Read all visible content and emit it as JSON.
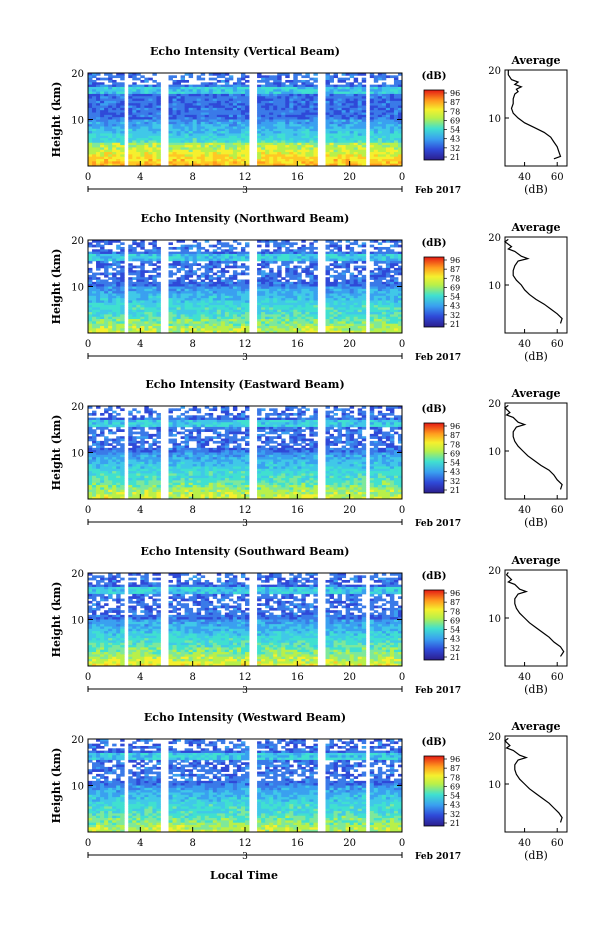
{
  "figure": {
    "x_axis_title": "Local Time",
    "date_label": "Feb 2017",
    "date_day": "3",
    "colorbar_unit": "(dB)",
    "colorbar_ticks": [
      "96",
      "87",
      "78",
      "69",
      "54",
      "43",
      "32",
      "21"
    ],
    "profile_title": "Average",
    "profile_xlabel": "(dB)",
    "height_label": "Height (km)"
  },
  "chart_data": [
    {
      "type": "heatmap",
      "title": "Echo Intensity (Vertical Beam)",
      "xlabel": "",
      "ylabel": "Height (km)",
      "x_ticks": [
        "0",
        "4",
        "8",
        "12",
        "16",
        "20",
        "0"
      ],
      "y_ticks": [
        "20",
        "10"
      ],
      "xlim": [
        0,
        24
      ],
      "ylim": [
        0,
        20
      ],
      "unit": "dB",
      "colorbar": [
        "96",
        "87",
        "78",
        "69",
        "54",
        "43",
        "32",
        "21"
      ],
      "data_gaps_hours": [
        2.9,
        5.9,
        12.6,
        17.8,
        21.4
      ],
      "profile": {
        "title": "Average",
        "xlabel": "(dB)",
        "x_ticks": [
          "40",
          "60"
        ],
        "y_ticks": [
          "20",
          "10"
        ],
        "points": [
          [
            30,
            20
          ],
          [
            30,
            19
          ],
          [
            32,
            18
          ],
          [
            36,
            17.5
          ],
          [
            34,
            17
          ],
          [
            38,
            16.5
          ],
          [
            35,
            16
          ],
          [
            36,
            15.5
          ],
          [
            34,
            15
          ],
          [
            33,
            14
          ],
          [
            33,
            13
          ],
          [
            32,
            12
          ],
          [
            33,
            11
          ],
          [
            36,
            10
          ],
          [
            40,
            9
          ],
          [
            46,
            8
          ],
          [
            52,
            7
          ],
          [
            56,
            6
          ],
          [
            58,
            5
          ],
          [
            60,
            4
          ],
          [
            61,
            3
          ],
          [
            62,
            2
          ],
          [
            58,
            1.5
          ]
        ]
      }
    },
    {
      "type": "heatmap",
      "title": "Echo Intensity (Northward Beam)",
      "xlabel": "",
      "ylabel": "Height (km)",
      "x_ticks": [
        "0",
        "4",
        "8",
        "12",
        "16",
        "20",
        "0"
      ],
      "y_ticks": [
        "20",
        "10"
      ],
      "xlim": [
        0,
        24
      ],
      "ylim": [
        0,
        20
      ],
      "unit": "dB",
      "colorbar": [
        "96",
        "87",
        "78",
        "69",
        "54",
        "43",
        "32",
        "21"
      ],
      "data_gaps_hours": [
        2.9,
        5.9,
        12.6,
        17.8,
        21.4
      ],
      "profile": {
        "title": "Average",
        "xlabel": "(dB)",
        "x_ticks": [
          "40",
          "60"
        ],
        "y_ticks": [
          "20",
          "10"
        ],
        "points": [
          [
            30,
            19.5
          ],
          [
            28,
            19
          ],
          [
            32,
            18
          ],
          [
            30,
            17.5
          ],
          [
            34,
            17
          ],
          [
            38,
            16
          ],
          [
            42,
            15.5
          ],
          [
            36,
            15
          ],
          [
            34,
            14
          ],
          [
            33,
            13
          ],
          [
            33,
            12
          ],
          [
            35,
            11
          ],
          [
            38,
            10
          ],
          [
            40,
            9
          ],
          [
            43,
            8
          ],
          [
            47,
            7
          ],
          [
            52,
            6
          ],
          [
            56,
            5
          ],
          [
            60,
            4
          ],
          [
            63,
            3
          ],
          [
            62,
            2
          ]
        ]
      }
    },
    {
      "type": "heatmap",
      "title": "Echo Intensity (Eastward Beam)",
      "xlabel": "",
      "ylabel": "Height (km)",
      "x_ticks": [
        "0",
        "4",
        "8",
        "12",
        "16",
        "20",
        "0"
      ],
      "y_ticks": [
        "20",
        "10"
      ],
      "xlim": [
        0,
        24
      ],
      "ylim": [
        0,
        20
      ],
      "unit": "dB",
      "colorbar": [
        "96",
        "87",
        "78",
        "69",
        "54",
        "43",
        "32",
        "21"
      ],
      "data_gaps_hours": [
        2.9,
        5.9,
        12.6,
        17.8,
        21.4
      ],
      "profile": {
        "title": "Average",
        "xlabel": "(dB)",
        "x_ticks": [
          "40",
          "60"
        ],
        "y_ticks": [
          "20",
          "10"
        ],
        "points": [
          [
            30,
            19.5
          ],
          [
            28,
            19
          ],
          [
            31,
            18
          ],
          [
            29,
            17.5
          ],
          [
            33,
            17
          ],
          [
            36,
            16
          ],
          [
            40,
            15.5
          ],
          [
            35,
            15
          ],
          [
            33,
            14
          ],
          [
            33,
            13
          ],
          [
            34,
            12
          ],
          [
            36,
            11
          ],
          [
            39,
            10
          ],
          [
            42,
            9
          ],
          [
            46,
            8
          ],
          [
            50,
            7
          ],
          [
            55,
            6
          ],
          [
            58,
            5
          ],
          [
            60,
            4
          ],
          [
            63,
            3
          ],
          [
            62,
            2
          ]
        ]
      }
    },
    {
      "type": "heatmap",
      "title": "Echo Intensity (Southward Beam)",
      "xlabel": "",
      "ylabel": "Height (km)",
      "x_ticks": [
        "0",
        "4",
        "8",
        "12",
        "16",
        "20",
        "0"
      ],
      "y_ticks": [
        "20",
        "10"
      ],
      "xlim": [
        0,
        24
      ],
      "ylim": [
        0,
        20
      ],
      "unit": "dB",
      "colorbar": [
        "96",
        "87",
        "78",
        "69",
        "54",
        "43",
        "32",
        "21"
      ],
      "data_gaps_hours": [
        2.9,
        5.9,
        12.6,
        17.8,
        21.4
      ],
      "profile": {
        "title": "Average",
        "xlabel": "(dB)",
        "x_ticks": [
          "40",
          "60"
        ],
        "y_ticks": [
          "20",
          "10"
        ],
        "points": [
          [
            30,
            19.5
          ],
          [
            29,
            19
          ],
          [
            32,
            18
          ],
          [
            30,
            17.5
          ],
          [
            34,
            17
          ],
          [
            37,
            16
          ],
          [
            41,
            15.5
          ],
          [
            36,
            15
          ],
          [
            34,
            14
          ],
          [
            34,
            13
          ],
          [
            35,
            12
          ],
          [
            37,
            11
          ],
          [
            40,
            10
          ],
          [
            43,
            9
          ],
          [
            47,
            8
          ],
          [
            51,
            7
          ],
          [
            55,
            6
          ],
          [
            58,
            5
          ],
          [
            62,
            4
          ],
          [
            64,
            3
          ],
          [
            62,
            2
          ]
        ]
      }
    },
    {
      "type": "heatmap",
      "title": "Echo Intensity (Westward Beam)",
      "xlabel": "Local Time",
      "ylabel": "Height (km)",
      "x_ticks": [
        "0",
        "4",
        "8",
        "12",
        "16",
        "20",
        "0"
      ],
      "y_ticks": [
        "20",
        "10"
      ],
      "xlim": [
        0,
        24
      ],
      "ylim": [
        0,
        20
      ],
      "unit": "dB",
      "colorbar": [
        "96",
        "87",
        "78",
        "69",
        "54",
        "43",
        "32",
        "21"
      ],
      "data_gaps_hours": [
        2.9,
        5.9,
        12.6,
        17.8,
        21.4
      ],
      "profile": {
        "title": "Average",
        "xlabel": "(dB)",
        "x_ticks": [
          "40",
          "60"
        ],
        "y_ticks": [
          "20",
          "10"
        ],
        "points": [
          [
            30,
            19.5
          ],
          [
            28,
            19
          ],
          [
            31,
            18
          ],
          [
            29,
            17.5
          ],
          [
            33,
            17
          ],
          [
            37,
            16
          ],
          [
            41,
            15.5
          ],
          [
            36,
            15
          ],
          [
            34,
            14
          ],
          [
            34,
            13
          ],
          [
            35,
            12
          ],
          [
            37,
            11
          ],
          [
            40,
            10
          ],
          [
            43,
            9
          ],
          [
            47,
            8
          ],
          [
            51,
            7
          ],
          [
            55,
            6
          ],
          [
            58,
            5
          ],
          [
            61,
            4
          ],
          [
            63,
            3
          ],
          [
            62,
            2
          ]
        ]
      }
    }
  ]
}
